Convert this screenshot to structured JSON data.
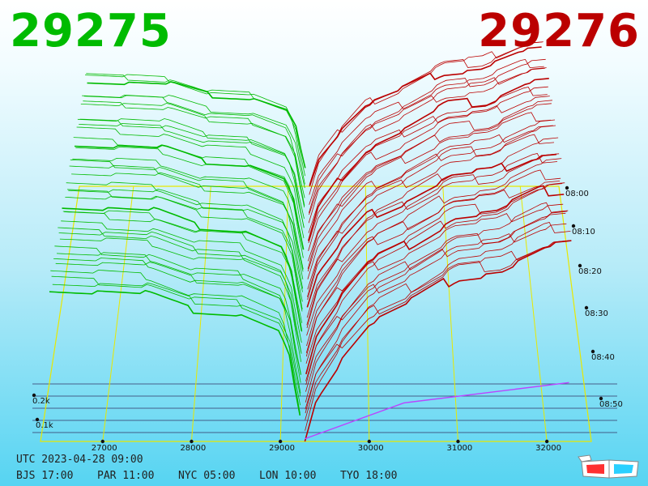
{
  "prices": {
    "bid": "29275",
    "ask": "29276"
  },
  "colors": {
    "bid": "#00bb00",
    "ask": "#bb0000",
    "grid": "#e8e800",
    "spot": "#bb44ff",
    "depth_axis_lines": "#333366"
  },
  "chart_data": {
    "type": "3d-depth",
    "title": "",
    "xlabel": "",
    "ylabel": "",
    "price_ticks": [
      "27000",
      "28000",
      "29000",
      "30000",
      "31000",
      "32000"
    ],
    "time_ticks": [
      "08:00",
      "08:10",
      "08:20",
      "08:30",
      "08:40",
      "08:50"
    ],
    "depth_ticks": [
      "0.2k",
      "0.1k"
    ],
    "price_range": [
      26300,
      32500
    ],
    "depth_range": [
      0,
      0.9
    ],
    "mid_price": 29275,
    "series": [
      {
        "side": "bid",
        "depth_profile": [
          {
            "price": 26400,
            "depth": 0.56
          },
          {
            "price": 27000,
            "depth": 0.55
          },
          {
            "price": 27500,
            "depth": 0.54
          },
          {
            "price": 28000,
            "depth": 0.48
          },
          {
            "price": 28500,
            "depth": 0.47
          },
          {
            "price": 29000,
            "depth": 0.4
          },
          {
            "price": 29100,
            "depth": 0.3
          },
          {
            "price": 29200,
            "depth": 0.1
          },
          {
            "price": 29275,
            "depth": 0.0
          }
        ]
      },
      {
        "side": "ask",
        "depth_profile": [
          {
            "price": 29276,
            "depth": 0.0
          },
          {
            "price": 29400,
            "depth": 0.15
          },
          {
            "price": 29700,
            "depth": 0.3
          },
          {
            "price": 30000,
            "depth": 0.42
          },
          {
            "price": 30500,
            "depth": 0.5
          },
          {
            "price": 31000,
            "depth": 0.6
          },
          {
            "price": 31500,
            "depth": 0.62
          },
          {
            "price": 32000,
            "depth": 0.7
          },
          {
            "price": 32300,
            "depth": 0.71
          }
        ]
      }
    ]
  },
  "time_info": {
    "utc": "UTC 2023-04-28 09:00",
    "zones": [
      "BJS 17:00",
      "PAR 11:00",
      "NYC 05:00",
      "LON 10:00",
      "TYO 18:00"
    ]
  },
  "icons": {
    "glasses": "3d-glasses-icon"
  }
}
